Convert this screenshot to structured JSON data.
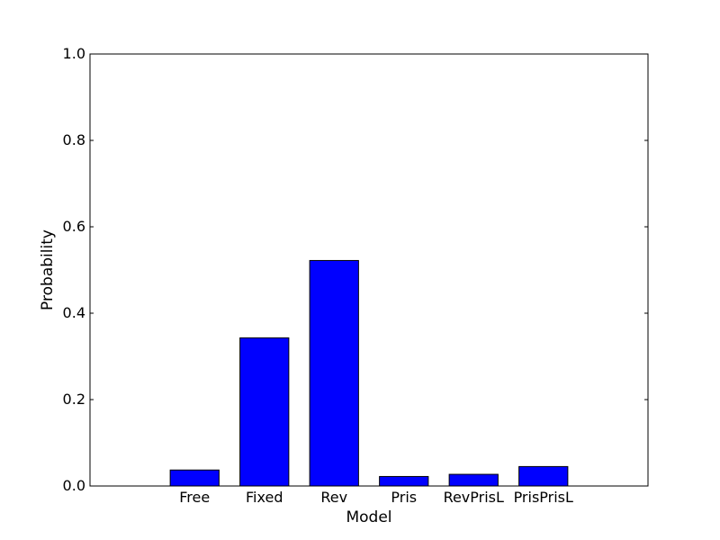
{
  "chart_data": {
    "type": "bar",
    "title": "",
    "xlabel": "Model",
    "ylabel": "Probability",
    "categories": [
      "Free",
      "Fixed",
      "Rev",
      "Pris",
      "RevPrisL",
      "PrisPrisL"
    ],
    "values": [
      0.037,
      0.343,
      0.522,
      0.022,
      0.027,
      0.045
    ],
    "ylim": [
      0,
      1.0
    ],
    "yticks": [
      "0.0",
      "0.2",
      "0.4",
      "0.6",
      "0.8",
      "1.0"
    ],
    "grid": false,
    "legend": "none",
    "bar_color": "#0000ff",
    "edge_color": "#000000"
  }
}
